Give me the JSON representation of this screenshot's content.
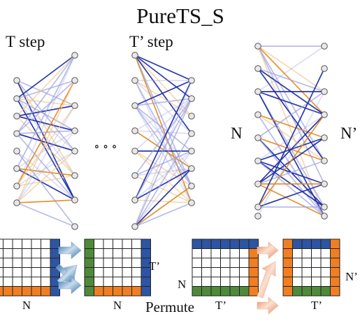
{
  "title": "PureTS_S",
  "labels": {
    "t_step": "T step",
    "t_prime_step": "T’ step",
    "n_left": "N",
    "n_right": "N’",
    "ellipsis": "∘  ∘  ∘",
    "bottom_n1": "N",
    "bottom_n2": "N",
    "bottom_t_prime_row": "T’",
    "bottom_n_row": "N",
    "bottom_t_prime1": "T’",
    "bottom_t_prime2": "T’",
    "bottom_n_prime_row": "N’",
    "permute": "Permute"
  },
  "colors": {
    "blue": "#2d55a4",
    "orange": "#f07f22",
    "green": "#4e8a3a",
    "line_dark_blue": "#1f2fa8",
    "line_light_blue": "#9aa0e0",
    "line_orange": "#e08a1e",
    "line_light_orange": "#f3c489",
    "node_fill": "#e8e8e8",
    "node_stroke": "#555555",
    "arrow_blue": "#5b86b4",
    "arrow_orange": "#e8956a"
  }
}
